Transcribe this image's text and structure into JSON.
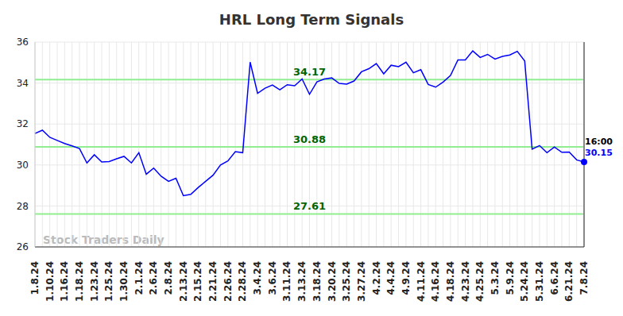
{
  "chart_data": {
    "type": "line",
    "title": "HRL Long Term Signals",
    "watermark": "Stock Traders Daily",
    "last_point_label": "16:00",
    "categories": [
      "1.8.24",
      null,
      "1.10.24",
      null,
      "1.16.24",
      null,
      "1.18.24",
      null,
      "1.23.24",
      null,
      "1.25.24",
      null,
      "1.30.24",
      null,
      "2.1.24",
      null,
      "2.6.24",
      null,
      "2.8.24",
      null,
      "2.13.24",
      null,
      "2.15.24",
      null,
      "2.21.24",
      null,
      "2.26.24",
      null,
      "2.28.24",
      null,
      "3.4.24",
      null,
      "3.6.24",
      null,
      "3.11.24",
      null,
      "3.13.24",
      null,
      "3.18.24",
      null,
      "3.20.24",
      null,
      "3.25.24",
      null,
      "3.27.24",
      null,
      "4.2.24",
      null,
      "4.4.24",
      null,
      "4.9.24",
      null,
      "4.11.24",
      null,
      "4.16.24",
      null,
      "4.18.24",
      null,
      "4.23.24",
      null,
      "4.25.24",
      null,
      "5.3.24",
      null,
      "5.9.24",
      null,
      "5.24.24",
      null,
      "5.31.24",
      null,
      "6.6.24",
      null,
      "6.21.24",
      null,
      "7.8.24"
    ],
    "values": [
      31.54,
      31.7,
      31.35,
      31.2,
      31.05,
      30.93,
      30.8,
      30.1,
      30.5,
      30.15,
      30.17,
      30.3,
      30.42,
      30.1,
      30.6,
      29.55,
      29.85,
      29.45,
      29.2,
      29.35,
      28.5,
      28.57,
      28.9,
      29.2,
      29.5,
      30.0,
      30.2,
      30.65,
      30.6,
      35.02,
      33.5,
      33.75,
      33.9,
      33.67,
      33.92,
      33.87,
      34.2,
      33.45,
      34.06,
      34.2,
      34.25,
      33.98,
      33.95,
      34.1,
      34.55,
      34.7,
      34.95,
      34.45,
      34.87,
      34.8,
      35.02,
      34.5,
      34.65,
      33.93,
      33.8,
      34.05,
      34.37,
      35.13,
      35.13,
      35.57,
      35.25,
      35.4,
      35.17,
      35.3,
      35.37,
      35.55,
      35.08,
      30.77,
      30.95,
      30.6,
      30.88,
      30.62,
      30.63,
      30.25,
      30.15
    ],
    "color": "#0000ff",
    "signals": [
      34.17,
      30.88,
      27.61
    ],
    "ylim": [
      26,
      36
    ],
    "yticks": [
      26,
      28,
      30,
      32,
      34,
      36
    ],
    "grid": true
  }
}
